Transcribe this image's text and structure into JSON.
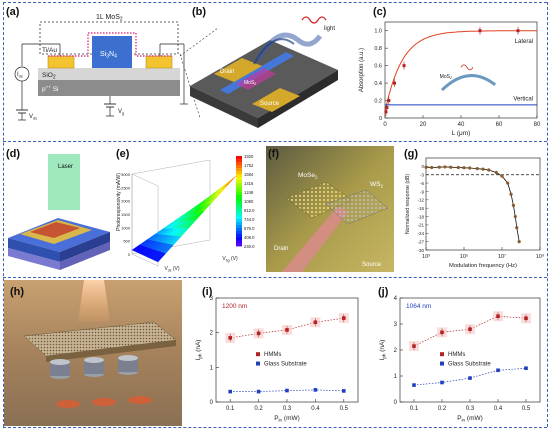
{
  "panels": {
    "a": {
      "label": "(a)",
      "layers": {
        "top": "1L MoS",
        "top_sub": "2",
        "contact": "Ti/Au",
        "core": "Si",
        "core_sub": "3",
        "core_n": "N",
        "core_sub2": "4",
        "oxide": "SiO",
        "oxide_sub": "2",
        "substrate": "p",
        "substrate_sup": "++",
        "substrate_rest": " Si"
      },
      "circuit": {
        "meter": "I",
        "meter_sub": "ds",
        "vds": "V",
        "vds_sub": "ds",
        "vg": "V",
        "vg_sub": "g"
      }
    },
    "b": {
      "label": "(b)",
      "drain": "Drain",
      "source": "Source",
      "mos": "MoS",
      "mos_sub": "2",
      "light": "light"
    },
    "c": {
      "label": "(c)",
      "lateral": "Lateral",
      "vertical": "Vertical",
      "mos": "MoS",
      "mos_sub": "2"
    },
    "d": {
      "label": "(d)",
      "laser": "Laser"
    },
    "e": {
      "label": "(e)"
    },
    "f": {
      "label": "(f)",
      "mos": "MoSe",
      "mos_sub": "2",
      "ws": "WS",
      "ws_sub": "2",
      "drain": "Drain",
      "source": "Source"
    },
    "g": {
      "label": "(g)"
    },
    "h": {
      "label": "(h)"
    },
    "i": {
      "label": "(i)",
      "wavelength": "1200 nm"
    },
    "j": {
      "label": "(j)",
      "wavelength": "1064 nm"
    }
  },
  "colors": {
    "divider": "#3a62b8",
    "red_marker": "#b22222",
    "blue_marker": "#1f3fbf",
    "fit_red": "#e04020",
    "gold": "#c9a227",
    "substrate": "#6e6e6e"
  },
  "chart_data": [
    {
      "id": "c",
      "type": "scatter",
      "xlabel": "L",
      "xlabel_unit": " (μm)",
      "ylabel": "Absorption (a.u.)",
      "xlim": [
        0,
        80
      ],
      "ylim": [
        0,
        1.1
      ],
      "xticks": [
        0,
        20,
        40,
        60,
        80
      ],
      "xtick_labels": [
        "0",
        "20",
        "40",
        "60",
        "80"
      ],
      "yticks": [
        0,
        0.2,
        0.4,
        0.6,
        0.8,
        1.0
      ],
      "ytick_labels": [
        "0",
        "0.2",
        "0.4",
        "0.6",
        "0.8",
        "1.0"
      ],
      "series": [
        {
          "name": "Lateral",
          "x": [
            0.5,
            1,
            2,
            5,
            10,
            50,
            70
          ],
          "y": [
            0.07,
            0.12,
            0.2,
            0.4,
            0.6,
            1.0,
            1.0
          ]
        },
        {
          "name": "Vertical",
          "x": [
            0,
            80
          ],
          "y": [
            0.15,
            0.15
          ]
        }
      ]
    },
    {
      "id": "e",
      "type": "surface",
      "xlabel": "V",
      "xlabel_sub": "ds",
      "xlabel_unit": " (V)",
      "ylabel": "V",
      "ylabel_sub": "bg",
      "ylabel_unit": " (V)",
      "zlabel": "Photoresponsivity (mA/W)",
      "colorbar_ticks": [
        "1920",
        "1752",
        "1584",
        "1416",
        "1248",
        "1080",
        "912.0",
        "744.0",
        "576.0",
        "408.0",
        "240.0"
      ],
      "zticks": [
        "3000",
        "2500",
        "2000",
        "1500",
        "1000",
        "500",
        "0"
      ]
    },
    {
      "id": "g",
      "type": "line",
      "xlabel": "Modulation frequency (Hz)",
      "ylabel": "Normalized response (dB)",
      "xscale": "log",
      "xlim": [
        1000,
        1000000000
      ],
      "ylim": [
        -30,
        3
      ],
      "xticks": [
        1000,
        100000,
        10000000,
        1000000000
      ],
      "xtick_labels": [
        "10³",
        "10⁵",
        "10⁷",
        "10⁹"
      ],
      "yticks": [
        0,
        -3,
        -6,
        -9,
        -12,
        -15,
        -18,
        -21,
        -24,
        -27,
        -30
      ],
      "ytick_labels": [
        "0",
        "-3",
        "-6",
        "-9",
        "-12",
        "-15",
        "-18",
        "-21",
        "-24",
        "-27",
        "-30"
      ],
      "reference_level": -3,
      "series": [
        {
          "name": "data",
          "x": [
            1000,
            2000,
            5000,
            10000,
            20000,
            50000,
            100000,
            200000,
            500000,
            1000000,
            2000000,
            5000000,
            10000000,
            20000000,
            30000000,
            40000000,
            50000000,
            60000000,
            80000000
          ],
          "y": [
            -0.3,
            -0.4,
            -0.3,
            -0.2,
            -0.3,
            -0.4,
            -0.5,
            -0.6,
            -0.8,
            -1.0,
            -1.3,
            -2.2,
            -3.5,
            -6,
            -10,
            -14,
            -18,
            -22,
            -27
          ]
        }
      ]
    },
    {
      "id": "i",
      "type": "scatter",
      "xlabel": "P",
      "xlabel_sub": "in",
      "xlabel_unit": " (mW)",
      "ylabel": "I",
      "ylabel_sub": "ph",
      "ylabel_unit": " (nA)",
      "xlim": [
        0.05,
        0.55
      ],
      "ylim": [
        0,
        3
      ],
      "xticks": [
        0.1,
        0.2,
        0.3,
        0.4,
        0.5
      ],
      "xtick_labels": [
        "0.1",
        "0.2",
        "0.3",
        "0.4",
        "0.5"
      ],
      "yticks": [
        0,
        1,
        2,
        3
      ],
      "ytick_labels": [
        "0",
        "1",
        "2",
        "3"
      ],
      "series": [
        {
          "name": "HMMs",
          "x": [
            0.1,
            0.2,
            0.3,
            0.4,
            0.5
          ],
          "y": [
            1.85,
            1.98,
            2.08,
            2.3,
            2.42
          ]
        },
        {
          "name": "Glass Substrate",
          "x": [
            0.1,
            0.2,
            0.3,
            0.4,
            0.5
          ],
          "y": [
            0.3,
            0.3,
            0.33,
            0.35,
            0.32
          ]
        }
      ]
    },
    {
      "id": "j",
      "type": "scatter",
      "xlabel": "P",
      "xlabel_sub": "in",
      "xlabel_unit": " (mW)",
      "ylabel": "I",
      "ylabel_sub": "ph",
      "ylabel_unit": " (nA)",
      "xlim": [
        0.05,
        0.55
      ],
      "ylim": [
        0,
        4
      ],
      "xticks": [
        0.1,
        0.2,
        0.3,
        0.4,
        0.5
      ],
      "xtick_labels": [
        "0.1",
        "0.2",
        "0.3",
        "0.4",
        "0.5"
      ],
      "yticks": [
        0,
        1,
        2,
        3,
        4
      ],
      "ytick_labels": [
        "0",
        "1",
        "2",
        "3",
        "4"
      ],
      "series": [
        {
          "name": "HMMs",
          "x": [
            0.1,
            0.2,
            0.3,
            0.4,
            0.5
          ],
          "y": [
            2.15,
            2.68,
            2.8,
            3.3,
            3.22
          ]
        },
        {
          "name": "Glass Substrate",
          "x": [
            0.1,
            0.2,
            0.3,
            0.4,
            0.5
          ],
          "y": [
            0.65,
            0.75,
            0.92,
            1.22,
            1.3
          ]
        }
      ]
    }
  ]
}
